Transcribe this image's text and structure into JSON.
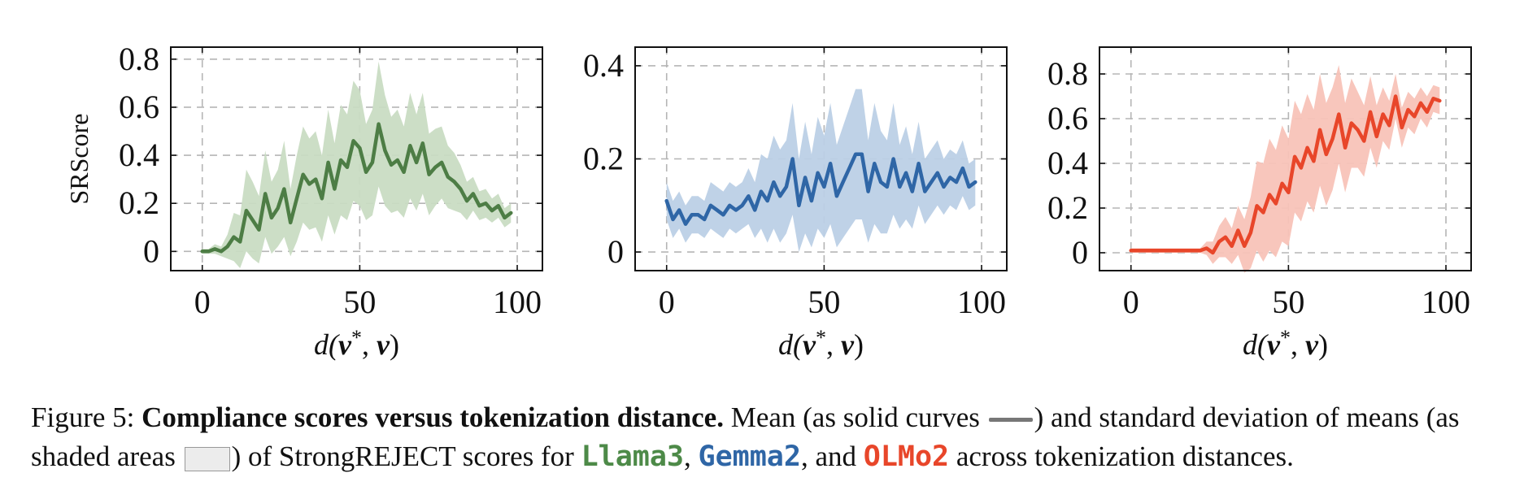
{
  "chart_data": [
    {
      "type": "line",
      "xlabel": "d(v*, v)",
      "ylabel": "SRScore",
      "xlim": [
        -10,
        108
      ],
      "ylim": [
        -0.08,
        0.85
      ],
      "xticks": [
        0,
        50,
        100
      ],
      "yticks": [
        0,
        0.2,
        0.4,
        0.6,
        0.8
      ],
      "ytick_labels": [
        "0",
        "0.2",
        "0.4",
        "0.6",
        "0.8"
      ],
      "grid": true,
      "color": "#4d7d45",
      "band_color": "#c9dcc3",
      "series": [
        {
          "x": [
            0,
            2,
            4,
            6,
            8,
            10,
            12,
            14,
            16,
            18,
            20,
            22,
            24,
            26,
            28,
            30,
            32,
            34,
            36,
            38,
            40,
            42,
            44,
            46,
            48,
            50,
            52,
            54,
            56,
            58,
            60,
            62,
            64,
            66,
            68,
            70,
            72,
            74,
            76,
            78,
            80,
            82,
            84,
            86,
            88,
            90,
            92,
            94,
            96,
            98
          ],
          "mean": [
            0.0,
            0.0,
            0.01,
            0.0,
            0.02,
            0.06,
            0.04,
            0.17,
            0.13,
            0.09,
            0.24,
            0.14,
            0.18,
            0.26,
            0.12,
            0.22,
            0.32,
            0.28,
            0.3,
            0.22,
            0.37,
            0.26,
            0.38,
            0.35,
            0.46,
            0.43,
            0.33,
            0.37,
            0.53,
            0.42,
            0.36,
            0.38,
            0.33,
            0.44,
            0.37,
            0.45,
            0.32,
            0.35,
            0.37,
            0.31,
            0.29,
            0.26,
            0.21,
            0.24,
            0.19,
            0.2,
            0.17,
            0.19,
            0.14,
            0.16
          ],
          "sd": [
            0.01,
            0.01,
            0.02,
            0.02,
            0.05,
            0.1,
            0.11,
            0.17,
            0.16,
            0.14,
            0.18,
            0.15,
            0.16,
            0.2,
            0.14,
            0.18,
            0.2,
            0.19,
            0.2,
            0.18,
            0.22,
            0.19,
            0.23,
            0.22,
            0.25,
            0.24,
            0.2,
            0.22,
            0.26,
            0.23,
            0.2,
            0.21,
            0.19,
            0.22,
            0.2,
            0.21,
            0.17,
            0.16,
            0.15,
            0.13,
            0.12,
            0.1,
            0.08,
            0.07,
            0.06,
            0.06,
            0.05,
            0.05,
            0.04,
            0.04
          ]
        }
      ]
    },
    {
      "type": "line",
      "xlabel": "d(v*, v)",
      "ylabel": "",
      "xlim": [
        -10,
        108
      ],
      "ylim": [
        -0.04,
        0.44
      ],
      "xticks": [
        0,
        50,
        100
      ],
      "yticks": [
        0,
        0.2,
        0.4
      ],
      "ytick_labels": [
        "0",
        "0.2",
        "0.4"
      ],
      "grid": true,
      "color": "#2f66a6",
      "band_color": "#bcd0e6",
      "series": [
        {
          "x": [
            0,
            2,
            4,
            6,
            8,
            10,
            12,
            14,
            16,
            18,
            20,
            22,
            24,
            26,
            28,
            30,
            32,
            34,
            36,
            38,
            40,
            42,
            44,
            46,
            48,
            50,
            52,
            54,
            56,
            58,
            60,
            62,
            64,
            66,
            68,
            70,
            72,
            74,
            76,
            78,
            80,
            82,
            84,
            86,
            88,
            90,
            92,
            94,
            96,
            98
          ],
          "mean": [
            0.11,
            0.07,
            0.09,
            0.06,
            0.08,
            0.08,
            0.07,
            0.1,
            0.09,
            0.08,
            0.1,
            0.09,
            0.1,
            0.12,
            0.09,
            0.13,
            0.11,
            0.15,
            0.12,
            0.14,
            0.2,
            0.1,
            0.16,
            0.11,
            0.17,
            0.14,
            0.19,
            0.12,
            0.15,
            0.18,
            0.21,
            0.21,
            0.13,
            0.19,
            0.15,
            0.14,
            0.2,
            0.14,
            0.17,
            0.13,
            0.19,
            0.13,
            0.15,
            0.17,
            0.14,
            0.16,
            0.15,
            0.18,
            0.14,
            0.15
          ],
          "sd": [
            0.04,
            0.04,
            0.04,
            0.04,
            0.04,
            0.04,
            0.04,
            0.05,
            0.05,
            0.05,
            0.05,
            0.05,
            0.05,
            0.06,
            0.06,
            0.08,
            0.09,
            0.1,
            0.1,
            0.1,
            0.12,
            0.1,
            0.12,
            0.1,
            0.12,
            0.11,
            0.13,
            0.11,
            0.12,
            0.13,
            0.14,
            0.14,
            0.11,
            0.13,
            0.11,
            0.1,
            0.12,
            0.09,
            0.1,
            0.08,
            0.09,
            0.07,
            0.07,
            0.07,
            0.06,
            0.06,
            0.06,
            0.06,
            0.05,
            0.05
          ]
        }
      ]
    },
    {
      "type": "line",
      "xlabel": "d(v*, v)",
      "ylabel": "",
      "xlim": [
        -10,
        108
      ],
      "ylim": [
        -0.08,
        0.92
      ],
      "xticks": [
        0,
        50,
        100
      ],
      "yticks": [
        0,
        0.2,
        0.4,
        0.6,
        0.8
      ],
      "ytick_labels": [
        "0",
        "0.2",
        "0.4",
        "0.6",
        "0.8"
      ],
      "grid": true,
      "color": "#e8462a",
      "band_color": "#f8c3b8",
      "series": [
        {
          "x": [
            0,
            2,
            4,
            6,
            8,
            10,
            12,
            14,
            16,
            18,
            20,
            22,
            24,
            26,
            28,
            30,
            32,
            34,
            36,
            38,
            40,
            42,
            44,
            46,
            48,
            50,
            52,
            54,
            56,
            58,
            60,
            62,
            64,
            66,
            68,
            70,
            72,
            74,
            76,
            78,
            80,
            82,
            84,
            86,
            88,
            90,
            92,
            94,
            96,
            98
          ],
          "mean": [
            0.01,
            0.01,
            0.01,
            0.01,
            0.01,
            0.01,
            0.01,
            0.01,
            0.01,
            0.01,
            0.01,
            0.01,
            0.02,
            0.0,
            0.05,
            0.07,
            0.03,
            0.1,
            0.03,
            0.09,
            0.21,
            0.18,
            0.26,
            0.22,
            0.31,
            0.27,
            0.43,
            0.38,
            0.47,
            0.41,
            0.55,
            0.44,
            0.51,
            0.62,
            0.47,
            0.58,
            0.55,
            0.5,
            0.63,
            0.52,
            0.62,
            0.57,
            0.7,
            0.56,
            0.64,
            0.61,
            0.67,
            0.63,
            0.69,
            0.68
          ],
          "sd": [
            0.01,
            0.01,
            0.01,
            0.01,
            0.01,
            0.01,
            0.01,
            0.01,
            0.01,
            0.01,
            0.01,
            0.01,
            0.03,
            0.05,
            0.07,
            0.09,
            0.08,
            0.11,
            0.12,
            0.16,
            0.2,
            0.22,
            0.25,
            0.24,
            0.26,
            0.24,
            0.25,
            0.24,
            0.24,
            0.23,
            0.25,
            0.23,
            0.23,
            0.22,
            0.2,
            0.2,
            0.17,
            0.16,
            0.16,
            0.14,
            0.12,
            0.11,
            0.1,
            0.09,
            0.08,
            0.08,
            0.07,
            0.07,
            0.06,
            0.06
          ]
        }
      ]
    }
  ],
  "caption": {
    "figure_label": "Figure 5: ",
    "bold_title": "Compliance scores versus tokenization distance.",
    "part1": " Mean (as solid curves ",
    "part2": ") and standard deviation of means (as shaded areas ",
    "part3": ") of StrongREJECT scores for ",
    "model1": "Llama3",
    "sep1": ", ",
    "model2": "Gemma2",
    "sep2": ", and ",
    "model3": "OLMo2",
    "part4": " across tokenization distances.",
    "model1_color": "#4d8a48",
    "model2_color": "#2f66a6",
    "model3_color": "#e8462a"
  }
}
